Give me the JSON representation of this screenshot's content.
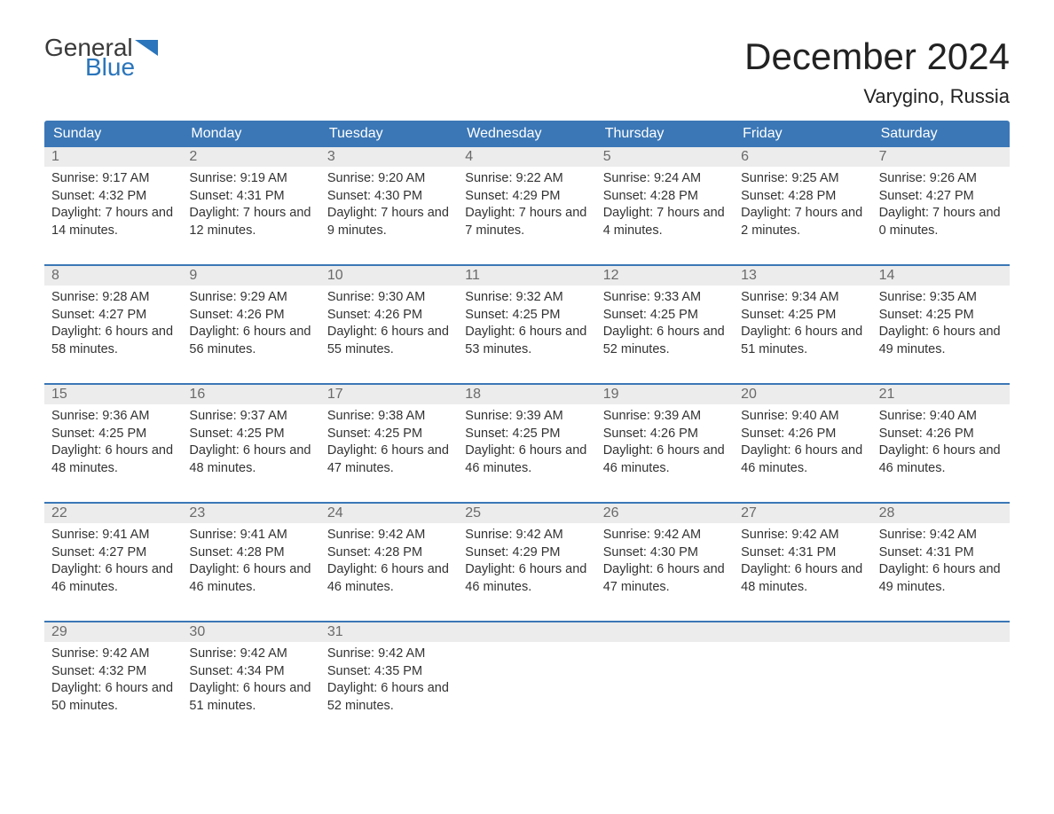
{
  "logo": {
    "word1": "General",
    "word2": "Blue"
  },
  "title": "December 2024",
  "location": "Varygino, Russia",
  "colors": {
    "header_bg": "#3b77b6",
    "header_text": "#ffffff",
    "daynum_bg": "#ececec",
    "daynum_text": "#6a6a6a",
    "body_text": "#333333",
    "accent_rule": "#3b77b6",
    "logo_gray": "#3a3a3a",
    "logo_blue": "#2a75bb"
  },
  "day_headers": [
    "Sunday",
    "Monday",
    "Tuesday",
    "Wednesday",
    "Thursday",
    "Friday",
    "Saturday"
  ],
  "labels": {
    "sunrise": "Sunrise:",
    "sunset": "Sunset:",
    "daylight": "Daylight:"
  },
  "weeks": [
    [
      {
        "n": "1",
        "sr": "9:17 AM",
        "ss": "4:32 PM",
        "dl": "7 hours and 14 minutes."
      },
      {
        "n": "2",
        "sr": "9:19 AM",
        "ss": "4:31 PM",
        "dl": "7 hours and 12 minutes."
      },
      {
        "n": "3",
        "sr": "9:20 AM",
        "ss": "4:30 PM",
        "dl": "7 hours and 9 minutes."
      },
      {
        "n": "4",
        "sr": "9:22 AM",
        "ss": "4:29 PM",
        "dl": "7 hours and 7 minutes."
      },
      {
        "n": "5",
        "sr": "9:24 AM",
        "ss": "4:28 PM",
        "dl": "7 hours and 4 minutes."
      },
      {
        "n": "6",
        "sr": "9:25 AM",
        "ss": "4:28 PM",
        "dl": "7 hours and 2 minutes."
      },
      {
        "n": "7",
        "sr": "9:26 AM",
        "ss": "4:27 PM",
        "dl": "7 hours and 0 minutes."
      }
    ],
    [
      {
        "n": "8",
        "sr": "9:28 AM",
        "ss": "4:27 PM",
        "dl": "6 hours and 58 minutes."
      },
      {
        "n": "9",
        "sr": "9:29 AM",
        "ss": "4:26 PM",
        "dl": "6 hours and 56 minutes."
      },
      {
        "n": "10",
        "sr": "9:30 AM",
        "ss": "4:26 PM",
        "dl": "6 hours and 55 minutes."
      },
      {
        "n": "11",
        "sr": "9:32 AM",
        "ss": "4:25 PM",
        "dl": "6 hours and 53 minutes."
      },
      {
        "n": "12",
        "sr": "9:33 AM",
        "ss": "4:25 PM",
        "dl": "6 hours and 52 minutes."
      },
      {
        "n": "13",
        "sr": "9:34 AM",
        "ss": "4:25 PM",
        "dl": "6 hours and 51 minutes."
      },
      {
        "n": "14",
        "sr": "9:35 AM",
        "ss": "4:25 PM",
        "dl": "6 hours and 49 minutes."
      }
    ],
    [
      {
        "n": "15",
        "sr": "9:36 AM",
        "ss": "4:25 PM",
        "dl": "6 hours and 48 minutes."
      },
      {
        "n": "16",
        "sr": "9:37 AM",
        "ss": "4:25 PM",
        "dl": "6 hours and 48 minutes."
      },
      {
        "n": "17",
        "sr": "9:38 AM",
        "ss": "4:25 PM",
        "dl": "6 hours and 47 minutes."
      },
      {
        "n": "18",
        "sr": "9:39 AM",
        "ss": "4:25 PM",
        "dl": "6 hours and 46 minutes."
      },
      {
        "n": "19",
        "sr": "9:39 AM",
        "ss": "4:26 PM",
        "dl": "6 hours and 46 minutes."
      },
      {
        "n": "20",
        "sr": "9:40 AM",
        "ss": "4:26 PM",
        "dl": "6 hours and 46 minutes."
      },
      {
        "n": "21",
        "sr": "9:40 AM",
        "ss": "4:26 PM",
        "dl": "6 hours and 46 minutes."
      }
    ],
    [
      {
        "n": "22",
        "sr": "9:41 AM",
        "ss": "4:27 PM",
        "dl": "6 hours and 46 minutes."
      },
      {
        "n": "23",
        "sr": "9:41 AM",
        "ss": "4:28 PM",
        "dl": "6 hours and 46 minutes."
      },
      {
        "n": "24",
        "sr": "9:42 AM",
        "ss": "4:28 PM",
        "dl": "6 hours and 46 minutes."
      },
      {
        "n": "25",
        "sr": "9:42 AM",
        "ss": "4:29 PM",
        "dl": "6 hours and 46 minutes."
      },
      {
        "n": "26",
        "sr": "9:42 AM",
        "ss": "4:30 PM",
        "dl": "6 hours and 47 minutes."
      },
      {
        "n": "27",
        "sr": "9:42 AM",
        "ss": "4:31 PM",
        "dl": "6 hours and 48 minutes."
      },
      {
        "n": "28",
        "sr": "9:42 AM",
        "ss": "4:31 PM",
        "dl": "6 hours and 49 minutes."
      }
    ],
    [
      {
        "n": "29",
        "sr": "9:42 AM",
        "ss": "4:32 PM",
        "dl": "6 hours and 50 minutes."
      },
      {
        "n": "30",
        "sr": "9:42 AM",
        "ss": "4:34 PM",
        "dl": "6 hours and 51 minutes."
      },
      {
        "n": "31",
        "sr": "9:42 AM",
        "ss": "4:35 PM",
        "dl": "6 hours and 52 minutes."
      },
      null,
      null,
      null,
      null
    ]
  ]
}
